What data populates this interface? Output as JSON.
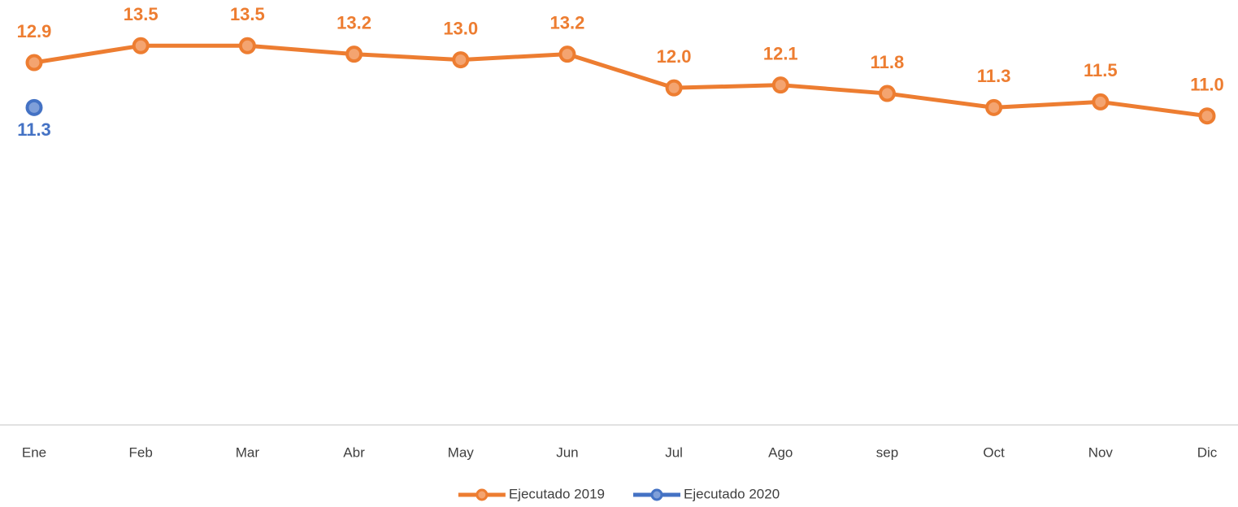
{
  "chart_data": {
    "type": "line",
    "categories": [
      "Ene",
      "Feb",
      "Mar",
      "Abr",
      "May",
      "Jun",
      "Jul",
      "Ago",
      "sep",
      "Oct",
      "Nov",
      "Dic"
    ],
    "series": [
      {
        "name": "Ejecutado 2019",
        "color": "#ed7d31",
        "values": [
          12.9,
          13.5,
          13.5,
          13.2,
          13.0,
          13.2,
          12.0,
          12.1,
          11.8,
          11.3,
          11.5,
          11.0
        ],
        "value_labels": [
          "12.9",
          "13.5",
          "13.5",
          "13.2",
          "13.0",
          "13.2",
          "12.0",
          "12.1",
          "11.8",
          "11.3",
          "11.5",
          "11.0"
        ],
        "label_position": "above"
      },
      {
        "name": "Ejecutado 2020",
        "color": "#4472c4",
        "values": [
          11.3,
          null,
          null,
          null,
          null,
          null,
          null,
          null,
          null,
          null,
          null,
          null
        ],
        "value_labels": [
          "11.3",
          null,
          null,
          null,
          null,
          null,
          null,
          null,
          null,
          null,
          null,
          null
        ],
        "label_position": "below"
      }
    ],
    "ylim": [
      0,
      14
    ],
    "legend": "bottom"
  }
}
